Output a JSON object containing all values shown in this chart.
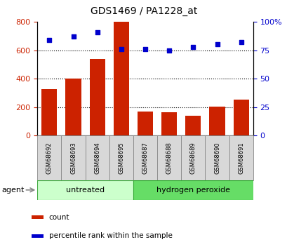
{
  "title": "GDS1469 / PA1228_at",
  "categories": [
    "GSM68692",
    "GSM68693",
    "GSM68694",
    "GSM68695",
    "GSM68687",
    "GSM68688",
    "GSM68689",
    "GSM68690",
    "GSM68691"
  ],
  "bar_values": [
    325,
    400,
    540,
    800,
    170,
    162,
    140,
    205,
    252
  ],
  "percentile_values": [
    84,
    87,
    91,
    76,
    76,
    75,
    78,
    80,
    82
  ],
  "bar_color": "#cc2200",
  "dot_color": "#0000cc",
  "left_ylim": [
    0,
    800
  ],
  "right_ylim": [
    0,
    100
  ],
  "left_yticks": [
    0,
    200,
    400,
    600,
    800
  ],
  "right_yticks": [
    0,
    25,
    50,
    75,
    100
  ],
  "right_yticklabels": [
    "0",
    "25",
    "50",
    "75",
    "100%"
  ],
  "group_labels": [
    "untreated",
    "hydrogen peroxide"
  ],
  "group_sizes": [
    4,
    5
  ],
  "group_colors_light": [
    "#ccffcc",
    "#66dd66"
  ],
  "agent_label": "agent",
  "legend_items": [
    "count",
    "percentile rank within the sample"
  ],
  "tick_label_color_left": "#cc2200",
  "tick_label_color_right": "#0000cc",
  "grid_yticks": [
    200,
    400,
    600
  ],
  "box_color": "#d8d8d8",
  "box_edge_color": "#888888"
}
